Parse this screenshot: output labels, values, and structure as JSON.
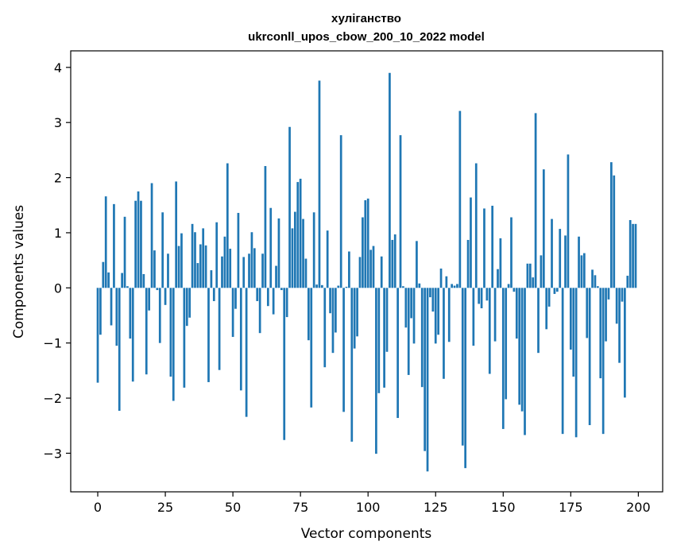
{
  "chart_data": {
    "type": "bar",
    "title": "хуліганство",
    "subtitle": "ukrconll_upos_cbow_200_10_2022 model",
    "xlabel": "Vector components",
    "ylabel": "Components values",
    "xlim": [
      -10,
      209
    ],
    "ylim": [
      -3.7,
      4.3
    ],
    "xticks": [
      0,
      25,
      50,
      75,
      100,
      125,
      150,
      175,
      200
    ],
    "xtick_labels": [
      "0",
      "25",
      "50",
      "75",
      "100",
      "125",
      "150",
      "175",
      "200"
    ],
    "yticks": [
      -3,
      -2,
      -1,
      0,
      1,
      2,
      3,
      4
    ],
    "ytick_labels": [
      "−3",
      "−2",
      "−1",
      "0",
      "1",
      "2",
      "3",
      "4"
    ],
    "grid": false,
    "color": "#1f77b4",
    "x": [
      0,
      1,
      2,
      3,
      4,
      5,
      6,
      7,
      8,
      9,
      10,
      11,
      12,
      13,
      14,
      15,
      16,
      17,
      18,
      19,
      20,
      21,
      22,
      23,
      24,
      25,
      26,
      27,
      28,
      29,
      30,
      31,
      32,
      33,
      34,
      35,
      36,
      37,
      38,
      39,
      40,
      41,
      42,
      43,
      44,
      45,
      46,
      47,
      48,
      49,
      50,
      51,
      52,
      53,
      54,
      55,
      56,
      57,
      58,
      59,
      60,
      61,
      62,
      63,
      64,
      65,
      66,
      67,
      68,
      69,
      70,
      71,
      72,
      73,
      74,
      75,
      76,
      77,
      78,
      79,
      80,
      81,
      82,
      83,
      84,
      85,
      86,
      87,
      88,
      89,
      90,
      91,
      92,
      93,
      94,
      95,
      96,
      97,
      98,
      99,
      100,
      101,
      102,
      103,
      104,
      105,
      106,
      107,
      108,
      109,
      110,
      111,
      112,
      113,
      114,
      115,
      116,
      117,
      118,
      119,
      120,
      121,
      122,
      123,
      124,
      125,
      126,
      127,
      128,
      129,
      130,
      131,
      132,
      133,
      134,
      135,
      136,
      137,
      138,
      139,
      140,
      141,
      142,
      143,
      144,
      145,
      146,
      147,
      148,
      149,
      150,
      151,
      152,
      153,
      154,
      155,
      156,
      157,
      158,
      159,
      160,
      161,
      162,
      163,
      164,
      165,
      166,
      167,
      168,
      169,
      170,
      171,
      172,
      173,
      174,
      175,
      176,
      177,
      178,
      179,
      180,
      181,
      182,
      183,
      184,
      185,
      186,
      187,
      188,
      189,
      190,
      191,
      192,
      193,
      194,
      195,
      196,
      197,
      198,
      199
    ],
    "values": [
      -1.72,
      -0.85,
      0.47,
      1.66,
      0.28,
      -0.68,
      1.52,
      -1.05,
      -2.23,
      0.27,
      1.29,
      0.03,
      -0.92,
      -1.7,
      1.58,
      1.75,
      1.58,
      0.25,
      -1.57,
      -0.41,
      1.9,
      0.68,
      -0.04,
      -1.0,
      1.37,
      -0.31,
      0.62,
      -1.61,
      -2.05,
      1.93,
      0.76,
      0.99,
      -1.81,
      -0.69,
      -0.54,
      1.16,
      1.01,
      0.45,
      0.79,
      1.08,
      0.77,
      -1.71,
      0.32,
      -0.24,
      1.19,
      -1.49,
      0.57,
      0.93,
      2.26,
      0.71,
      -0.89,
      -0.38,
      1.36,
      -1.86,
      0.56,
      -2.34,
      0.62,
      1.01,
      0.72,
      -0.24,
      -0.82,
      0.62,
      2.21,
      -0.33,
      1.45,
      -0.48,
      0.4,
      1.26,
      -0.04,
      -2.76,
      -0.53,
      2.92,
      1.08,
      1.38,
      1.92,
      1.98,
      1.25,
      0.53,
      -0.95,
      -2.17,
      1.37,
      0.06,
      3.76,
      0.05,
      -1.44,
      1.04,
      -0.46,
      -1.18,
      -0.81,
      0.04,
      2.77,
      -2.25,
      0.02,
      0.66,
      -2.79,
      -1.1,
      -0.88,
      0.56,
      1.28,
      1.59,
      1.62,
      0.69,
      0.76,
      -3.01,
      -1.91,
      0.57,
      -1.81,
      -1.16,
      3.9,
      0.87,
      0.97,
      -2.36,
      2.77,
      0.03,
      -0.72,
      -1.58,
      -0.55,
      -1.01,
      0.85,
      0.08,
      -1.8,
      -2.96,
      -3.33,
      -0.17,
      -0.43,
      -1.01,
      -0.85,
      0.35,
      -1.65,
      0.21,
      -0.98,
      0.07,
      0.04,
      0.07,
      3.21,
      -2.86,
      -3.27,
      0.87,
      1.64,
      -1.05,
      2.26,
      -0.29,
      -0.37,
      1.44,
      -0.23,
      -1.56,
      1.49,
      -0.97,
      0.34,
      0.9,
      -2.56,
      -2.02,
      0.07,
      1.28,
      -0.07,
      -0.92,
      -2.12,
      -2.24,
      -2.67,
      0.44,
      0.44,
      0.19,
      3.17,
      -1.18,
      0.59,
      2.15,
      -0.75,
      -0.34,
      1.25,
      -0.11,
      -0.07,
      1.07,
      -2.65,
      0.95,
      2.42,
      -1.12,
      -1.61,
      -2.71,
      0.93,
      0.59,
      0.63,
      -0.91,
      -2.49,
      0.33,
      0.23,
      0.03,
      -1.64,
      -2.65,
      -0.97,
      -0.21,
      2.28,
      2.04,
      -0.65,
      -1.36,
      -0.25,
      -1.99,
      0.22,
      1.23,
      1.16,
      1.16
    ]
  }
}
